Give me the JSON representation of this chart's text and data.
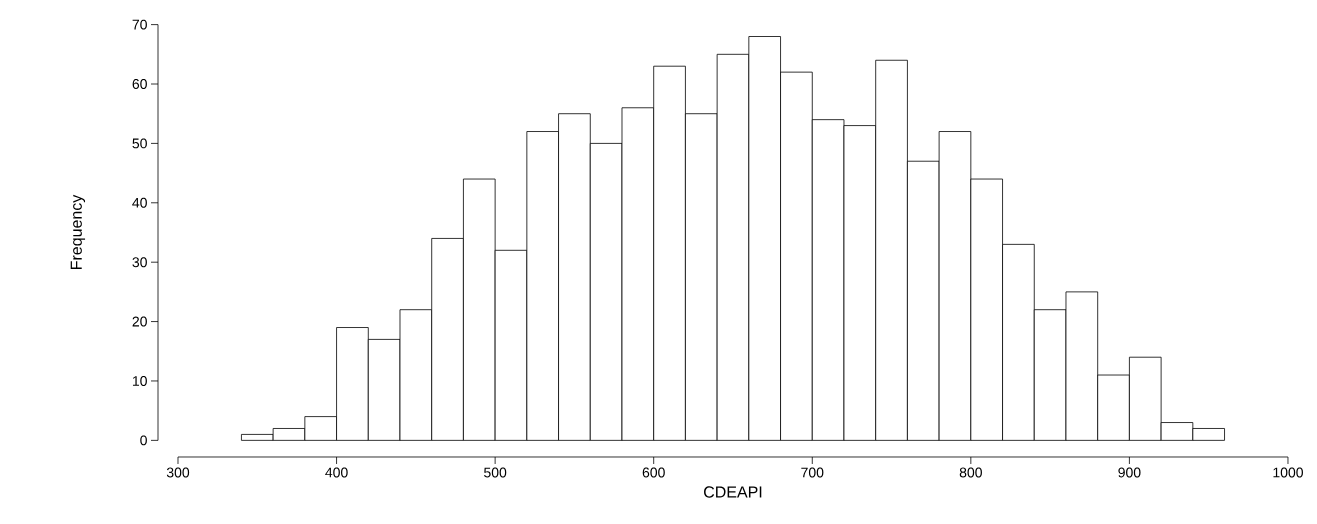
{
  "chart_data": {
    "type": "histogram",
    "xlabel": "CDEAPI",
    "ylabel": "Frequency",
    "bins": [
      340,
      360,
      380,
      400,
      420,
      440,
      460,
      480,
      500,
      520,
      540,
      560,
      580,
      600,
      620,
      640,
      660,
      680,
      700,
      720,
      740,
      760,
      780,
      800,
      820,
      840,
      860,
      880,
      900,
      920,
      940,
      960
    ],
    "values": [
      1,
      2,
      4,
      19,
      17,
      22,
      34,
      44,
      32,
      52,
      55,
      50,
      56,
      63,
      55,
      65,
      68,
      62,
      54,
      53,
      64,
      47,
      52,
      44,
      33,
      22,
      25,
      11,
      14,
      3,
      2
    ],
    "color": "#ffffff",
    "xlim": [
      300,
      1000
    ],
    "ylim": [
      0,
      70
    ],
    "xticks": [
      300,
      400,
      500,
      600,
      700,
      800,
      900,
      1000
    ],
    "yticks": [
      0,
      10,
      20,
      30,
      40,
      50,
      60,
      70
    ],
    "grid": false
  }
}
